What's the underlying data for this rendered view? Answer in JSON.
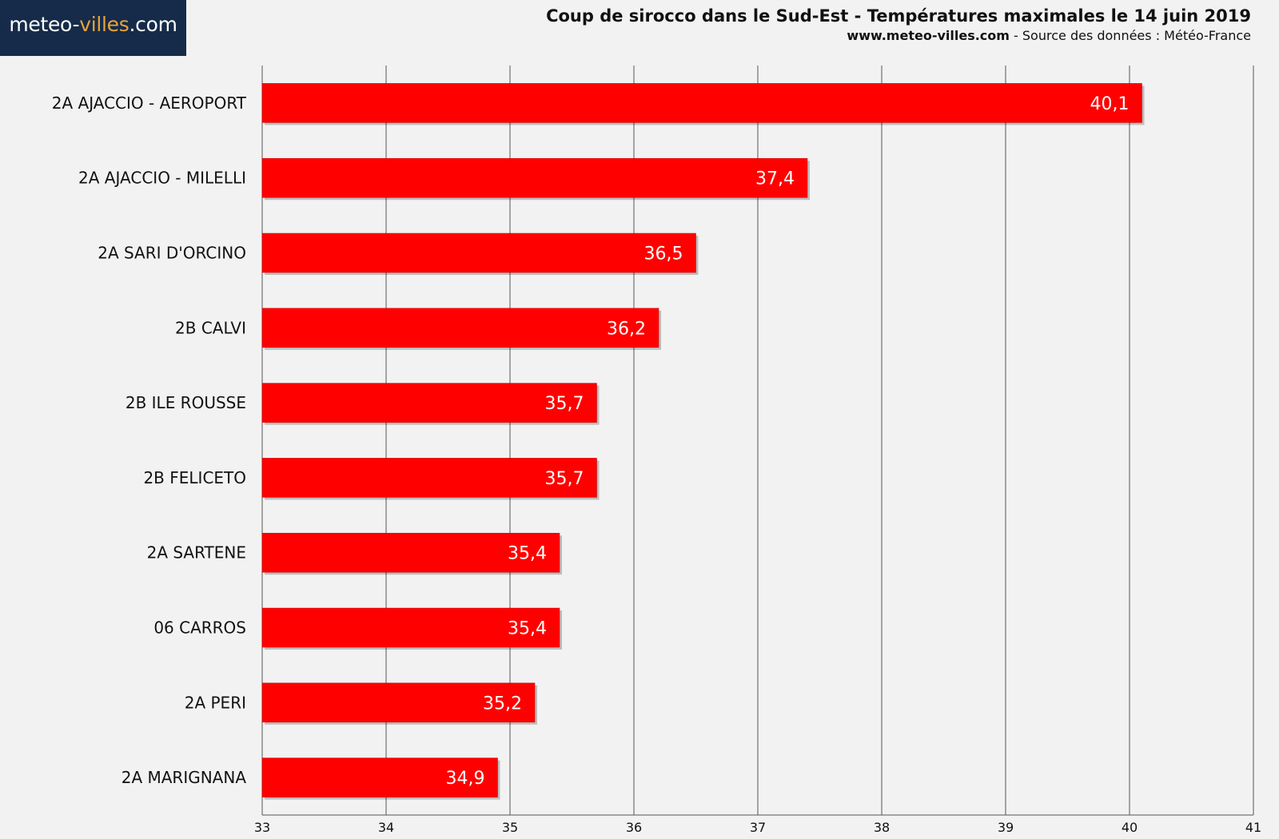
{
  "header": {
    "logo_text_main": "meteo-",
    "logo_text_accent": "villes",
    "logo_text_suffix": ".com",
    "title": "Coup de sirocco dans le Sud-Est - Températures maximales le 14 juin 2019",
    "subtitle_site": "www.meteo-villes.com",
    "subtitle_source": " - Source des données : Météo-France"
  },
  "colors": {
    "bar": "#ff0000",
    "bar_border": "#c00000",
    "grid": "#555555",
    "background": "#f2f2f2",
    "logo_bg": "#162b4a",
    "logo_accent": "#e8a33a"
  },
  "chart_data": {
    "type": "bar",
    "orientation": "horizontal",
    "title": "Coup de sirocco dans le Sud-Est - Températures maximales le 14 juin 2019",
    "categories": [
      "2A AJACCIO - AEROPORT",
      "2A AJACCIO - MILELLI",
      "2A SARI D'ORCINO",
      "2B CALVI",
      "2B ILE ROUSSE",
      "2B FELICETO",
      "2A SARTENE",
      "06 CARROS",
      "2A PERI",
      "2A MARIGNANA"
    ],
    "values": [
      40.1,
      37.4,
      36.5,
      36.2,
      35.7,
      35.7,
      35.4,
      35.4,
      35.2,
      34.9
    ],
    "value_labels": [
      "40,1",
      "37,4",
      "36,5",
      "36,2",
      "35,7",
      "35,7",
      "35,4",
      "35,4",
      "35,2",
      "34,9"
    ],
    "xlim": [
      33,
      41
    ],
    "xticks": [
      "33",
      "34",
      "35",
      "36",
      "37",
      "38",
      "39",
      "40",
      "41"
    ],
    "xlabel": "",
    "ylabel": "",
    "grid": true,
    "legend": "none"
  }
}
